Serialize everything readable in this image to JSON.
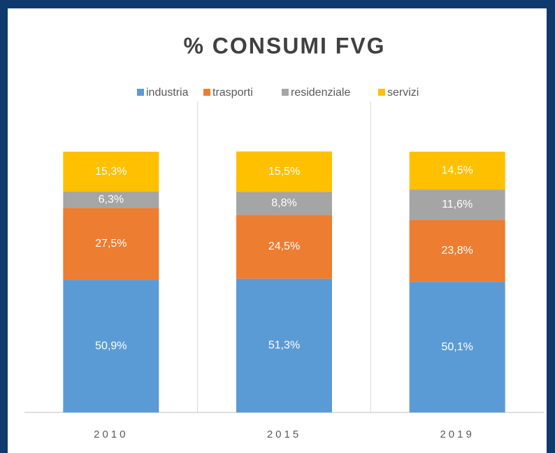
{
  "chart_data": {
    "type": "stacked_bar",
    "title": "% CONSUMI FVG",
    "categories": [
      "2010",
      "2015",
      "2019"
    ],
    "series": [
      {
        "name": "industria",
        "color": "#5b9bd5",
        "values": [
          50.9,
          51.3,
          50.1
        ],
        "value_labels": [
          "50,9%",
          "51,3%",
          "50,1%"
        ]
      },
      {
        "name": "trasporti",
        "color": "#ed7d31",
        "values": [
          27.5,
          24.5,
          23.8
        ],
        "value_labels": [
          "27,5%",
          "24,5%",
          "23,8%"
        ]
      },
      {
        "name": "residenziale",
        "color": "#a5a5a5",
        "values": [
          6.3,
          8.8,
          11.6
        ],
        "value_labels": [
          "6,3%",
          "8,8%",
          "11,6%"
        ]
      },
      {
        "name": "servizi",
        "color": "#ffc000",
        "values": [
          15.3,
          15.5,
          14.5
        ],
        "value_labels": [
          "15,3%",
          "15,5%",
          "14,5%"
        ]
      }
    ],
    "ylim": [
      0,
      100
    ],
    "legend": "top"
  }
}
